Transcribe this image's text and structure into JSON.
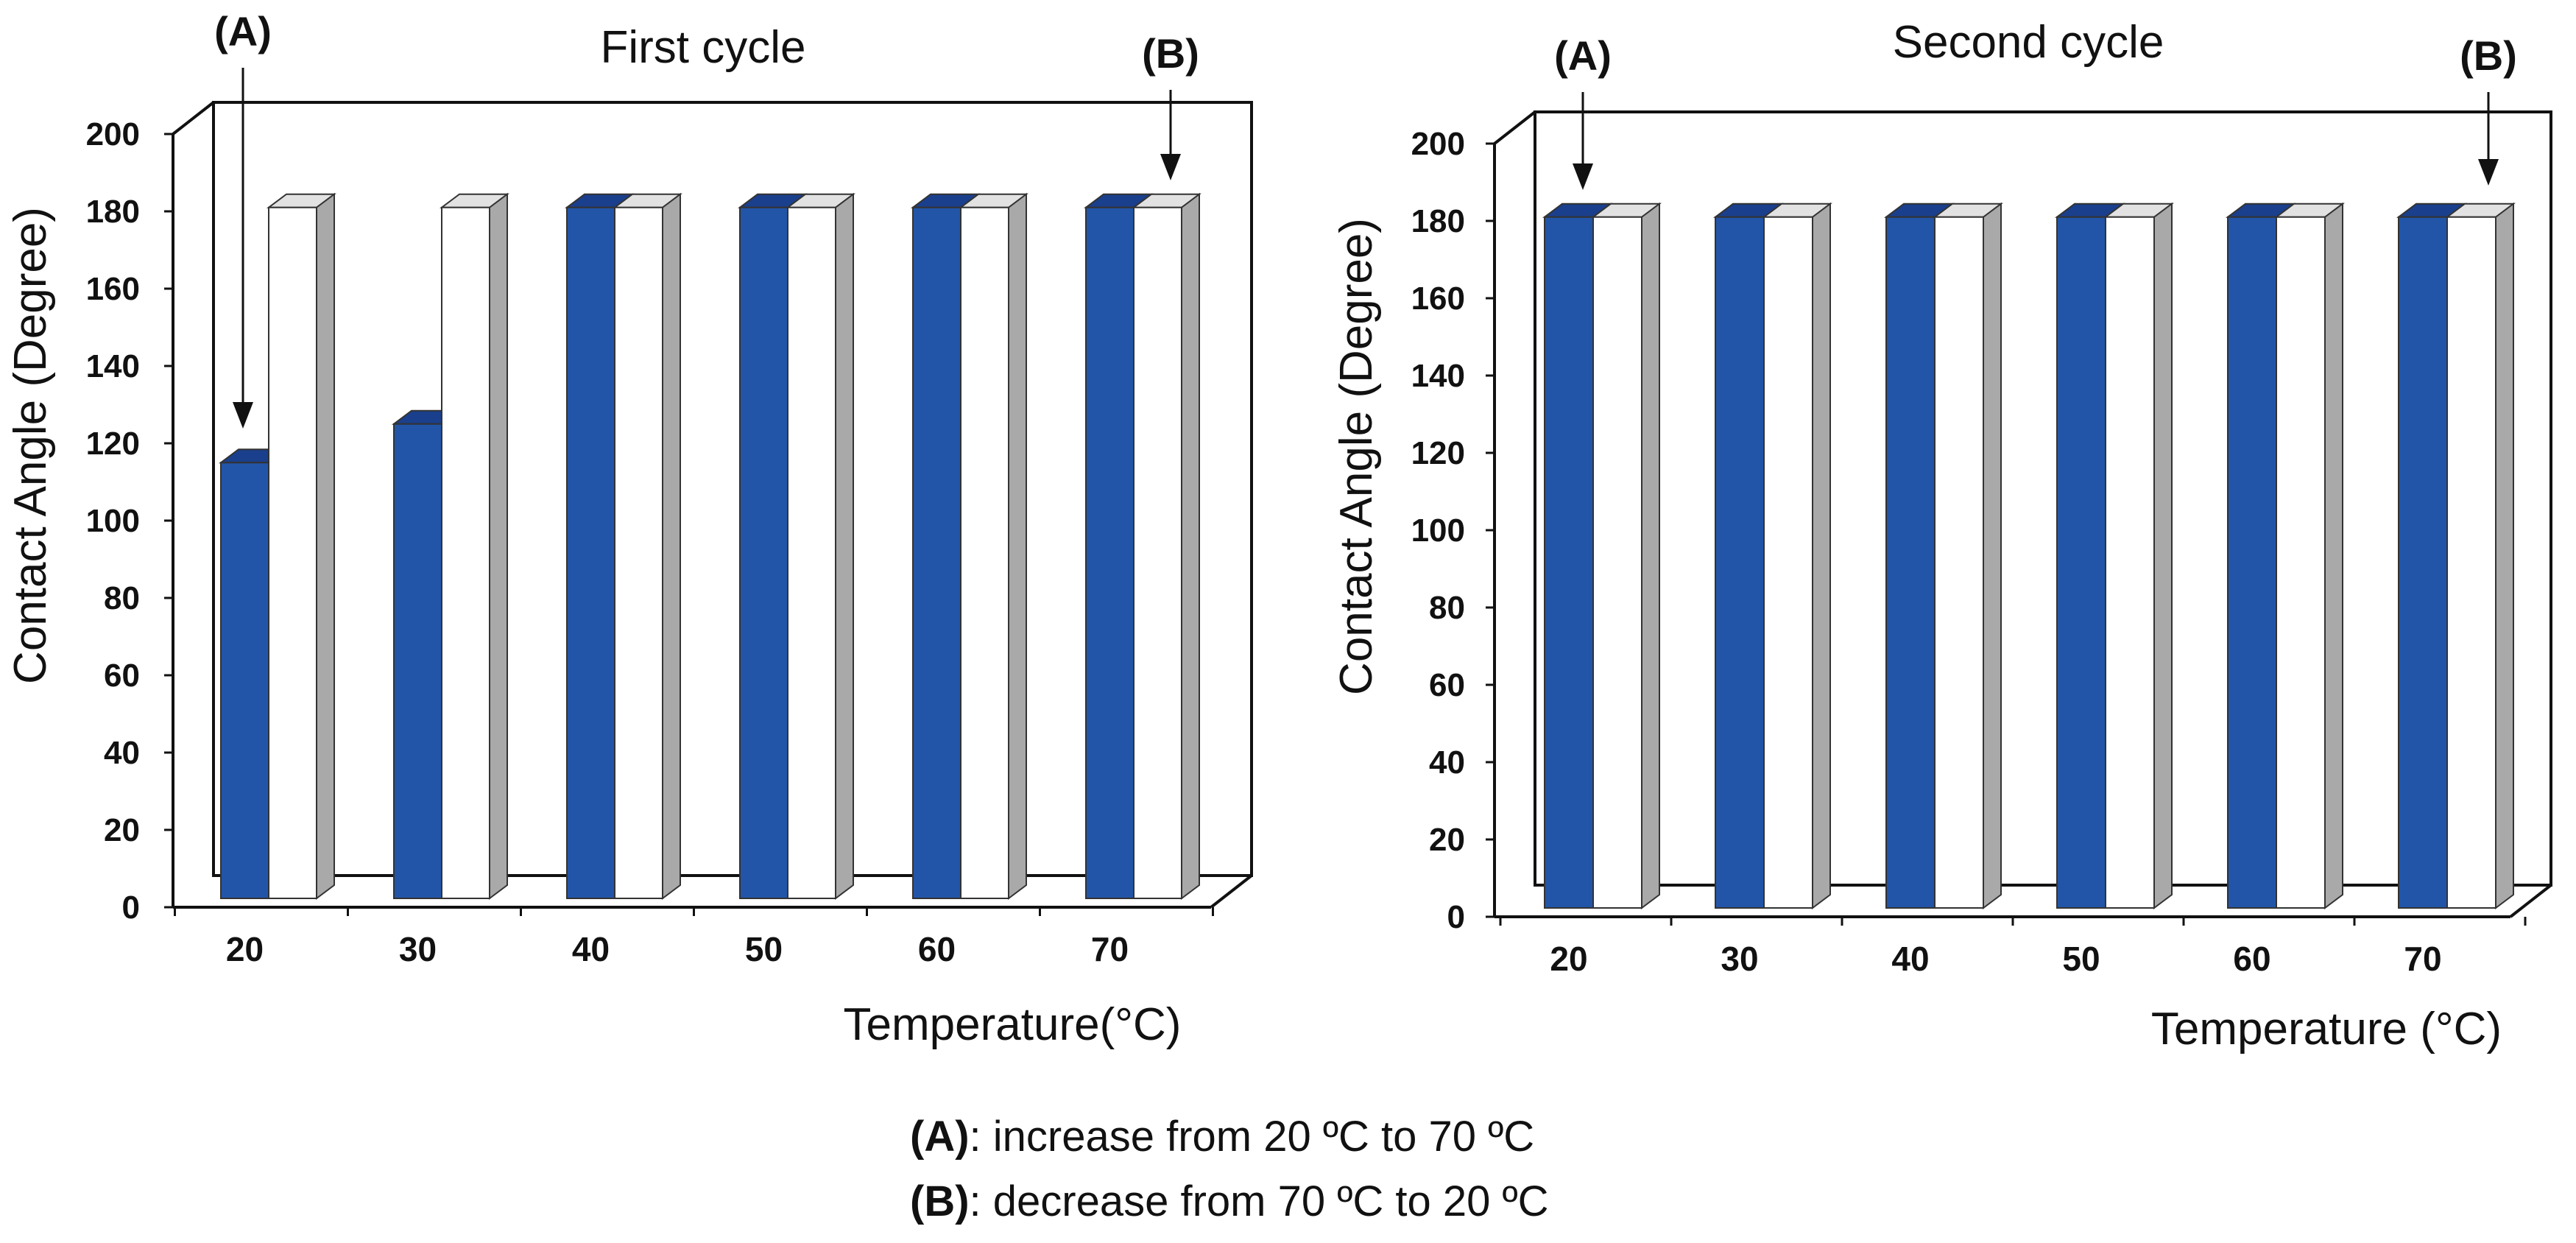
{
  "colors": {
    "increase": "#2255A8",
    "increase_top": "#1A3F8C",
    "decrease": "#FFFFFF",
    "decrease_top": "#E2E2E2",
    "side": "#A9A9A9",
    "stroke": "#333333"
  },
  "chart_data": [
    {
      "type": "bar",
      "title": "First cycle",
      "xlabel": "Temperature(°C)",
      "ylabel": "Contact Angle (Degree)",
      "ylim": [
        0,
        200
      ],
      "yticks": [
        "0",
        "20",
        "40",
        "60",
        "80",
        "100",
        "120",
        "140",
        "160",
        "180",
        "200"
      ],
      "categories": [
        "20",
        "30",
        "40",
        "50",
        "60",
        "70"
      ],
      "series": [
        {
          "name": "(A) increase",
          "values": [
            115,
            125,
            181,
            181,
            181,
            181
          ]
        },
        {
          "name": "(B) decrease",
          "values": [
            181,
            181,
            181,
            181,
            181,
            181
          ]
        }
      ],
      "annotations": [
        "(A)",
        "(B)"
      ]
    },
    {
      "type": "bar",
      "title": "Second cycle",
      "xlabel": "Temperature (°C)",
      "ylabel": "Contact Angle (Degree)",
      "ylim": [
        0,
        200
      ],
      "yticks": [
        "0",
        "20",
        "40",
        "60",
        "80",
        "100",
        "120",
        "140",
        "160",
        "180",
        "200"
      ],
      "categories": [
        "20",
        "30",
        "40",
        "50",
        "60",
        "70"
      ],
      "series": [
        {
          "name": "(A) increase",
          "values": [
            181,
            181,
            181,
            181,
            181,
            181
          ]
        },
        {
          "name": "(B) decrease",
          "values": [
            181,
            181,
            181,
            181,
            181,
            181
          ]
        }
      ],
      "annotations": [
        "(A)",
        "(B)"
      ]
    }
  ],
  "legend": {
    "a_label": "(A)",
    "a_text": ": increase from 20 ºC to 70 ºC",
    "b_label": "(B)",
    "b_text": ": decrease from 70 ºC to 20 ºC"
  }
}
